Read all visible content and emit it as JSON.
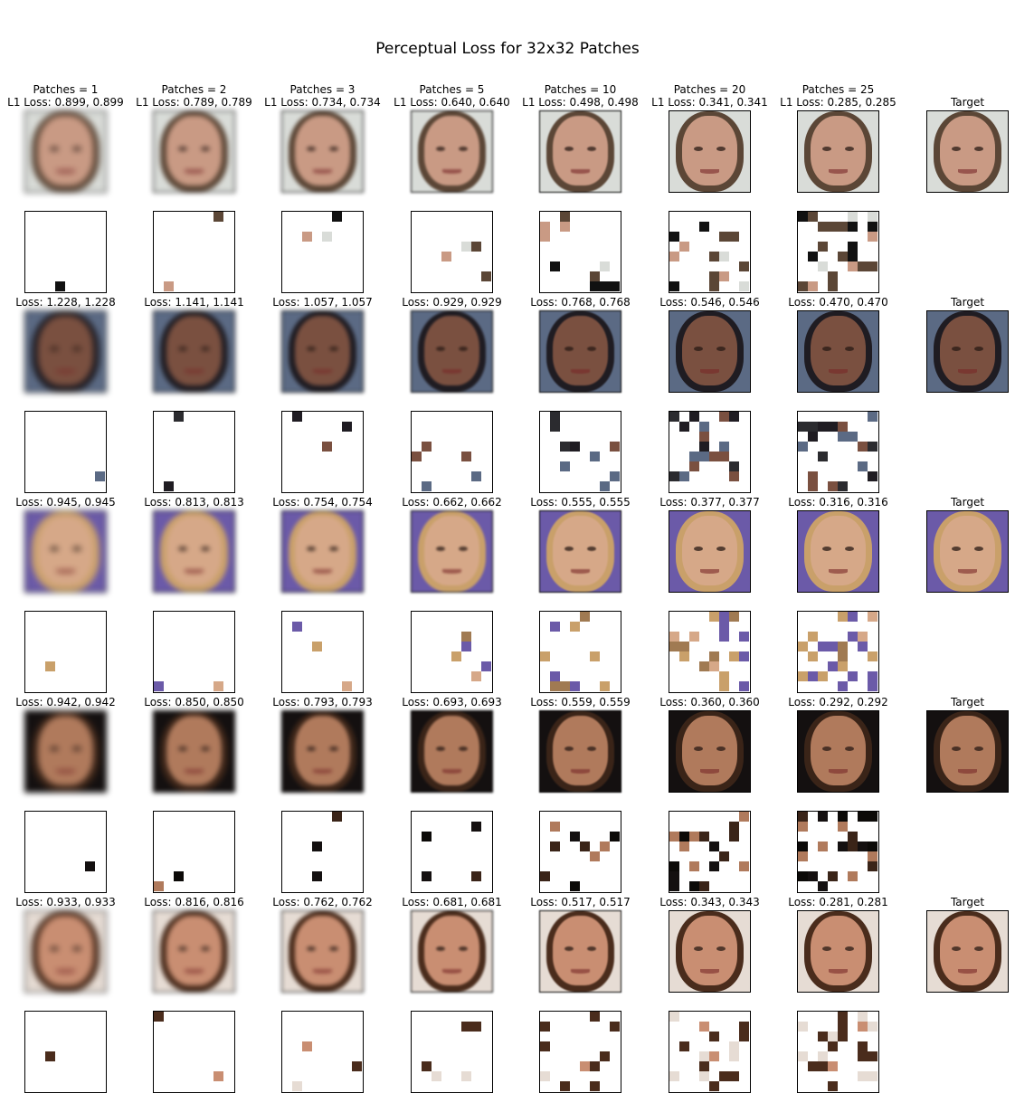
{
  "title": "Perceptual Loss for 32x32 Patches",
  "target_label": "Target",
  "header_labels": [
    [
      "Patches = 1",
      "L1 Loss: 0.899, 0.899"
    ],
    [
      "Patches = 2",
      "L1 Loss: 0.789, 0.789"
    ],
    [
      "Patches = 3",
      "L1 Loss: 0.734, 0.734"
    ],
    [
      "Patches = 5",
      "L1 Loss: 0.640, 0.640"
    ],
    [
      "Patches = 10",
      "L1 Loss: 0.498, 0.498"
    ],
    [
      "Patches = 20",
      "L1 Loss: 0.341, 0.341"
    ],
    [
      "Patches = 25",
      "L1 Loss: 0.285, 0.285"
    ]
  ],
  "row_labels": [
    [
      "Loss: 1.228, 1.228",
      "Loss: 1.141, 1.141",
      "Loss: 1.057, 1.057",
      "Loss: 0.929, 0.929",
      "Loss: 0.768, 0.768",
      "Loss: 0.546, 0.546",
      "Loss: 0.470, 0.470"
    ],
    [
      "Loss: 0.945, 0.945",
      "Loss: 0.813, 0.813",
      "Loss: 0.754, 0.754",
      "Loss: 0.662, 0.662",
      "Loss: 0.555, 0.555",
      "Loss: 0.377, 0.377",
      "Loss: 0.316, 0.316"
    ],
    [
      "Loss: 0.942, 0.942",
      "Loss: 0.850, 0.850",
      "Loss: 0.793, 0.793",
      "Loss: 0.693, 0.693",
      "Loss: 0.559, 0.559",
      "Loss: 0.360, 0.360",
      "Loss: 0.292, 0.292"
    ],
    [
      "Loss: 0.933, 0.933",
      "Loss: 0.816, 0.816",
      "Loss: 0.762, 0.762",
      "Loss: 0.681, 0.681",
      "Loss: 0.517, 0.517",
      "Loss: 0.343, 0.343",
      "Loss: 0.281, 0.281"
    ]
  ],
  "patch_counts": [
    1,
    2,
    3,
    5,
    10,
    20,
    25
  ],
  "examples": [
    {
      "skin": "#c99a84",
      "hair": "#5b4636",
      "bg": "#d9dcd8",
      "accent": "#111111"
    },
    {
      "skin": "#7a5040",
      "hair": "#1f1c22",
      "bg": "#5b6a84",
      "accent": "#2b2b2f"
    },
    {
      "skin": "#d6a888",
      "hair": "#c9a06a",
      "bg": "#6b5aa8",
      "accent": "#a07a52"
    },
    {
      "skin": "#b07a5c",
      "hair": "#3a2418",
      "bg": "#141010",
      "accent": "#0c0a08"
    },
    {
      "skin": "#c98e72",
      "hair": "#4a2c1c",
      "bg": "#e6dcd4",
      "accent": "#4a2c1c"
    }
  ]
}
